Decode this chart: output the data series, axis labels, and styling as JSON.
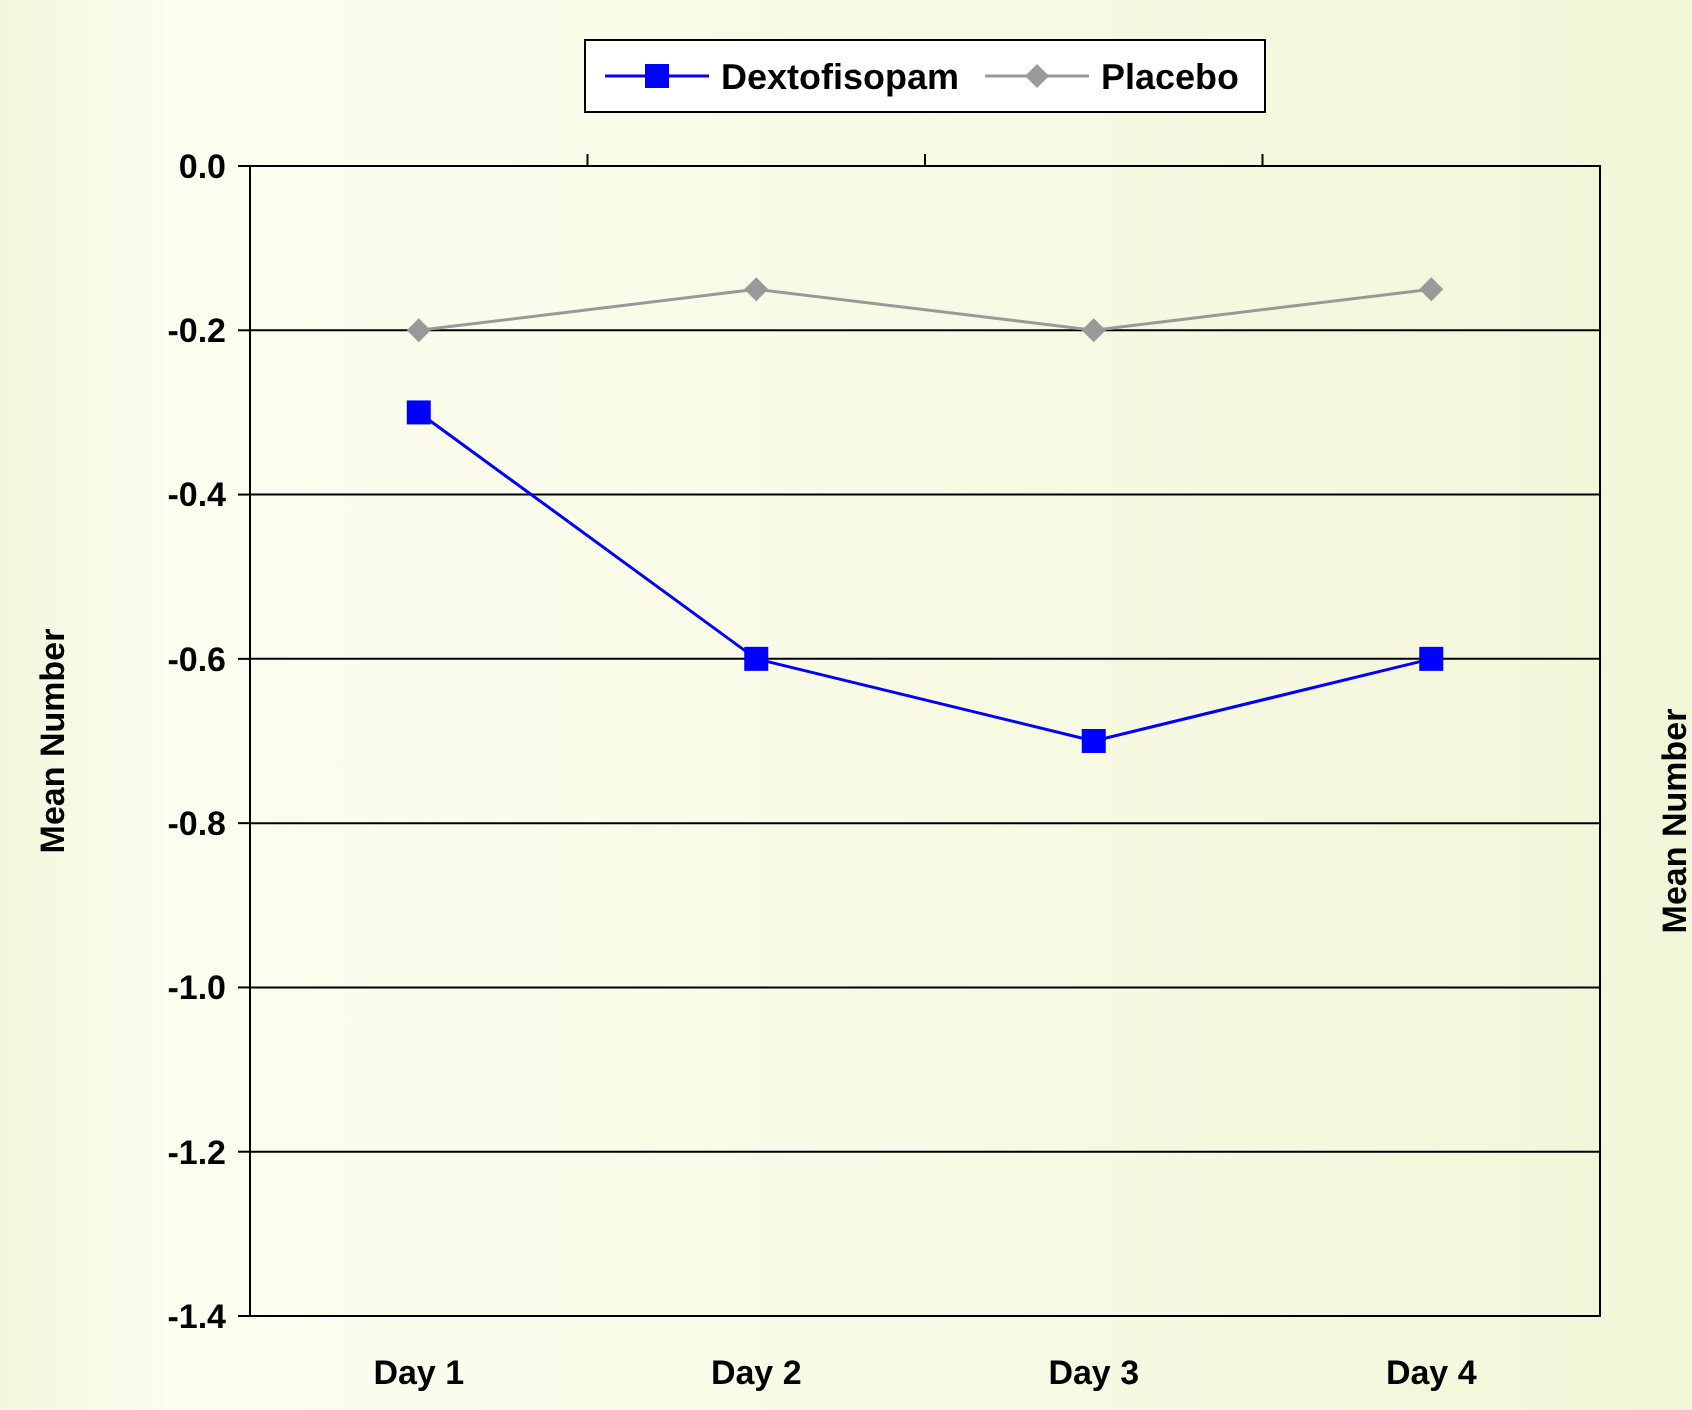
{
  "chart_data": {
    "type": "line",
    "ylabel": "Mean Number",
    "y2label": "Mean Number",
    "categories": [
      "Day 1",
      "Day 2",
      "Day 3",
      "Day 4"
    ],
    "series": [
      {
        "name": "Dextofisopam",
        "color": "#0000ff",
        "marker": "square",
        "values": [
          -0.3,
          -0.6,
          -0.7,
          -0.6
        ]
      },
      {
        "name": "Placebo",
        "color": "#999999",
        "marker": "diamond",
        "values": [
          -0.2,
          -0.15,
          -0.2,
          -0.15
        ]
      }
    ],
    "ylim": [
      -1.4,
      0
    ],
    "yticks": [
      {
        "value": -1.4,
        "label": "-1.4"
      },
      {
        "value": -1.2,
        "label": "-1.2"
      },
      {
        "value": -1.0,
        "label": "-1.0"
      },
      {
        "value": -0.8,
        "label": "-0.8"
      },
      {
        "value": -0.6,
        "label": "-0.6"
      },
      {
        "value": -0.4,
        "label": "-0.4"
      },
      {
        "value": -0.2,
        "label": "-0.2"
      },
      {
        "value": 0,
        "label": "0.0"
      }
    ],
    "grid": "y",
    "legend": "top"
  }
}
